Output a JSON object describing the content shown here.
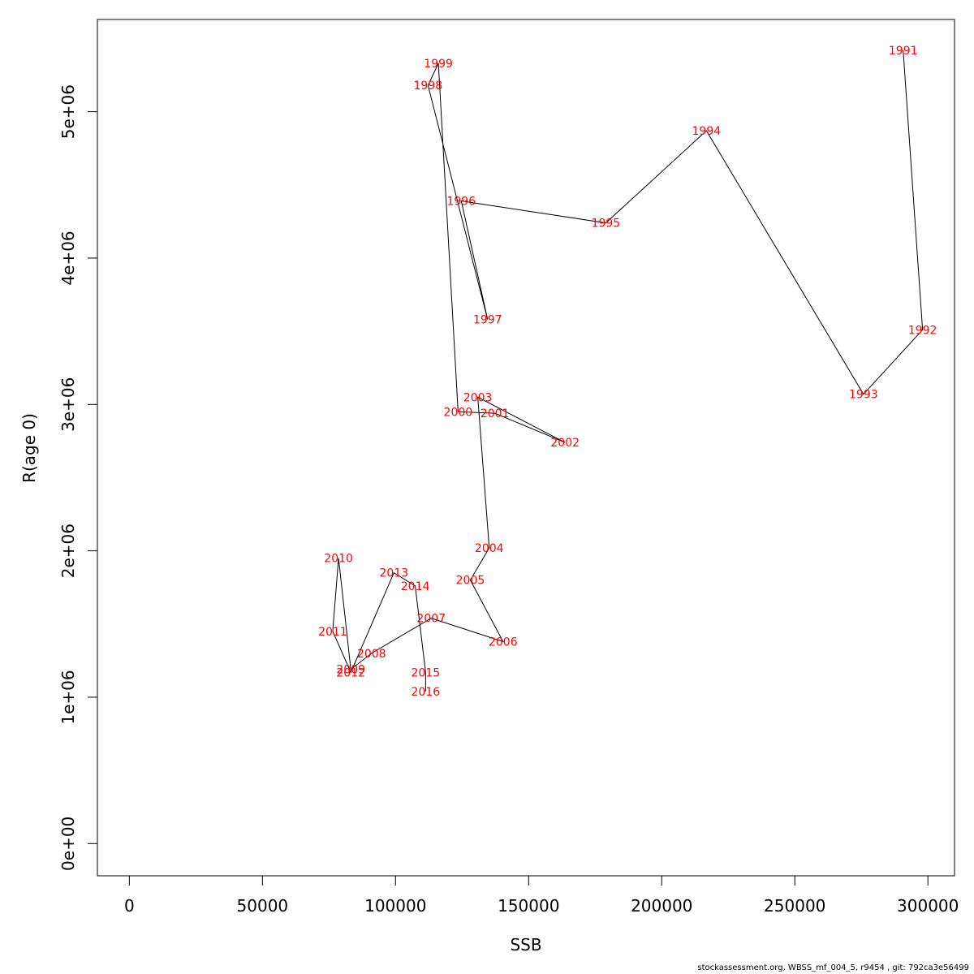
{
  "chart_data": {
    "type": "line",
    "xlabel": "SSB",
    "ylabel": "R(age 0)",
    "xlim": [
      -12000,
      310000
    ],
    "ylim": [
      -220000,
      5630000
    ],
    "x_ticks": [
      0,
      50000,
      100000,
      150000,
      200000,
      250000,
      300000
    ],
    "x_tick_labels": [
      "0",
      "50000",
      "100000",
      "150000",
      "200000",
      "250000",
      "300000"
    ],
    "y_ticks": [
      0,
      1000000,
      2000000,
      3000000,
      4000000,
      5000000
    ],
    "y_tick_labels": [
      "0e+00",
      "1e+06",
      "2e+06",
      "3e+06",
      "4e+06",
      "5e+06"
    ],
    "line_color": "#000000",
    "label_color": "#ff0000",
    "grid": false,
    "points": [
      {
        "year": "1991",
        "ssb": 290700,
        "r": 5420000
      },
      {
        "year": "1992",
        "ssb": 298000,
        "r": 3510000
      },
      {
        "year": "1993",
        "ssb": 275800,
        "r": 3070000
      },
      {
        "year": "1994",
        "ssb": 216800,
        "r": 4870000
      },
      {
        "year": "1995",
        "ssb": 179000,
        "r": 4240000
      },
      {
        "year": "1996",
        "ssb": 124700,
        "r": 4390000
      },
      {
        "year": "1997",
        "ssb": 134600,
        "r": 3580000
      },
      {
        "year": "1998",
        "ssb": 112200,
        "r": 5180000
      },
      {
        "year": "1999",
        "ssb": 116100,
        "r": 5330000
      },
      {
        "year": "2000",
        "ssb": 123500,
        "r": 2950000
      },
      {
        "year": "2001",
        "ssb": 137300,
        "r": 2940000
      },
      {
        "year": "2002",
        "ssb": 163700,
        "r": 2740000
      },
      {
        "year": "2003",
        "ssb": 130900,
        "r": 3050000
      },
      {
        "year": "2004",
        "ssb": 135200,
        "r": 2020000
      },
      {
        "year": "2005",
        "ssb": 128100,
        "r": 1800000
      },
      {
        "year": "2006",
        "ssb": 140400,
        "r": 1380000
      },
      {
        "year": "2007",
        "ssb": 113400,
        "r": 1540000
      },
      {
        "year": "2008",
        "ssb": 91000,
        "r": 1300000
      },
      {
        "year": "2009",
        "ssb": 83200,
        "r": 1190000
      },
      {
        "year": "2010",
        "ssb": 78600,
        "r": 1950000
      },
      {
        "year": "2011",
        "ssb": 76400,
        "r": 1450000
      },
      {
        "year": "2012",
        "ssb": 83200,
        "r": 1170000
      },
      {
        "year": "2013",
        "ssb": 99400,
        "r": 1850000
      },
      {
        "year": "2014",
        "ssb": 107400,
        "r": 1760000
      },
      {
        "year": "2015",
        "ssb": 111300,
        "r": 1170000
      },
      {
        "year": "2016",
        "ssb": 111300,
        "r": 1040000
      }
    ]
  },
  "footer": {
    "text": "stockassessment.org, WBSS_mf_004_5, r9454 , git: 792ca3e56499"
  }
}
